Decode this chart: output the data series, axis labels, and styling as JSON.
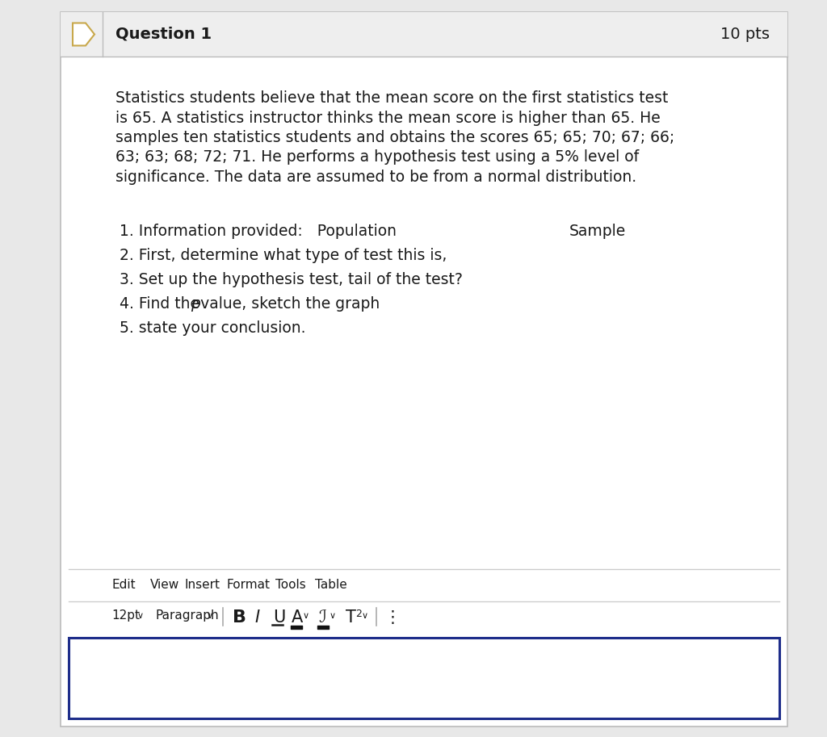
{
  "bg_color": "#e8e8e8",
  "card_color": "#ffffff",
  "card_border_color": "#bbbbbb",
  "header_bg": "#eeeeee",
  "header_border_color": "#bbbbbb",
  "question_label": "Question 1",
  "pts_label": "10 pts",
  "body_text_lines": [
    "Statistics students believe that the mean score on the first statistics test",
    "is 65. A statistics instructor thinks the mean score is higher than 65. He",
    "samples ten statistics students and obtains the scores 65; 65; 70; 67; 66;",
    "63; 63; 68; 72; 71. He performs a hypothesis test using a 5% level of",
    "significance. The data are assumed to be from a normal distribution."
  ],
  "item1_pre": "1. Information provided:   Population",
  "item1_sample": "Sample",
  "item2": "2. First, determine what type of test this is,",
  "item3": "3. Set up the hypothesis test, tail of the test?",
  "item4_pre": "4. Find the ",
  "item4_italic": "p",
  "item4_post": "-value, sketch the graph",
  "item5": "5. state your conclusion.",
  "toolbar_items": [
    "Edit",
    "View",
    "Insert",
    "Format",
    "Tools",
    "Table"
  ],
  "answer_border_color": "#1e2d8a",
  "font_color": "#1a1a1a",
  "header_font_size": 14,
  "body_font_size": 13.5,
  "list_font_size": 13.5,
  "toolbar_font_size": 11,
  "formatbar_font_size": 11,
  "icon_color": "#c8a84b",
  "separator_color": "#aaaaaa",
  "toolbar_line_color": "#cccccc"
}
